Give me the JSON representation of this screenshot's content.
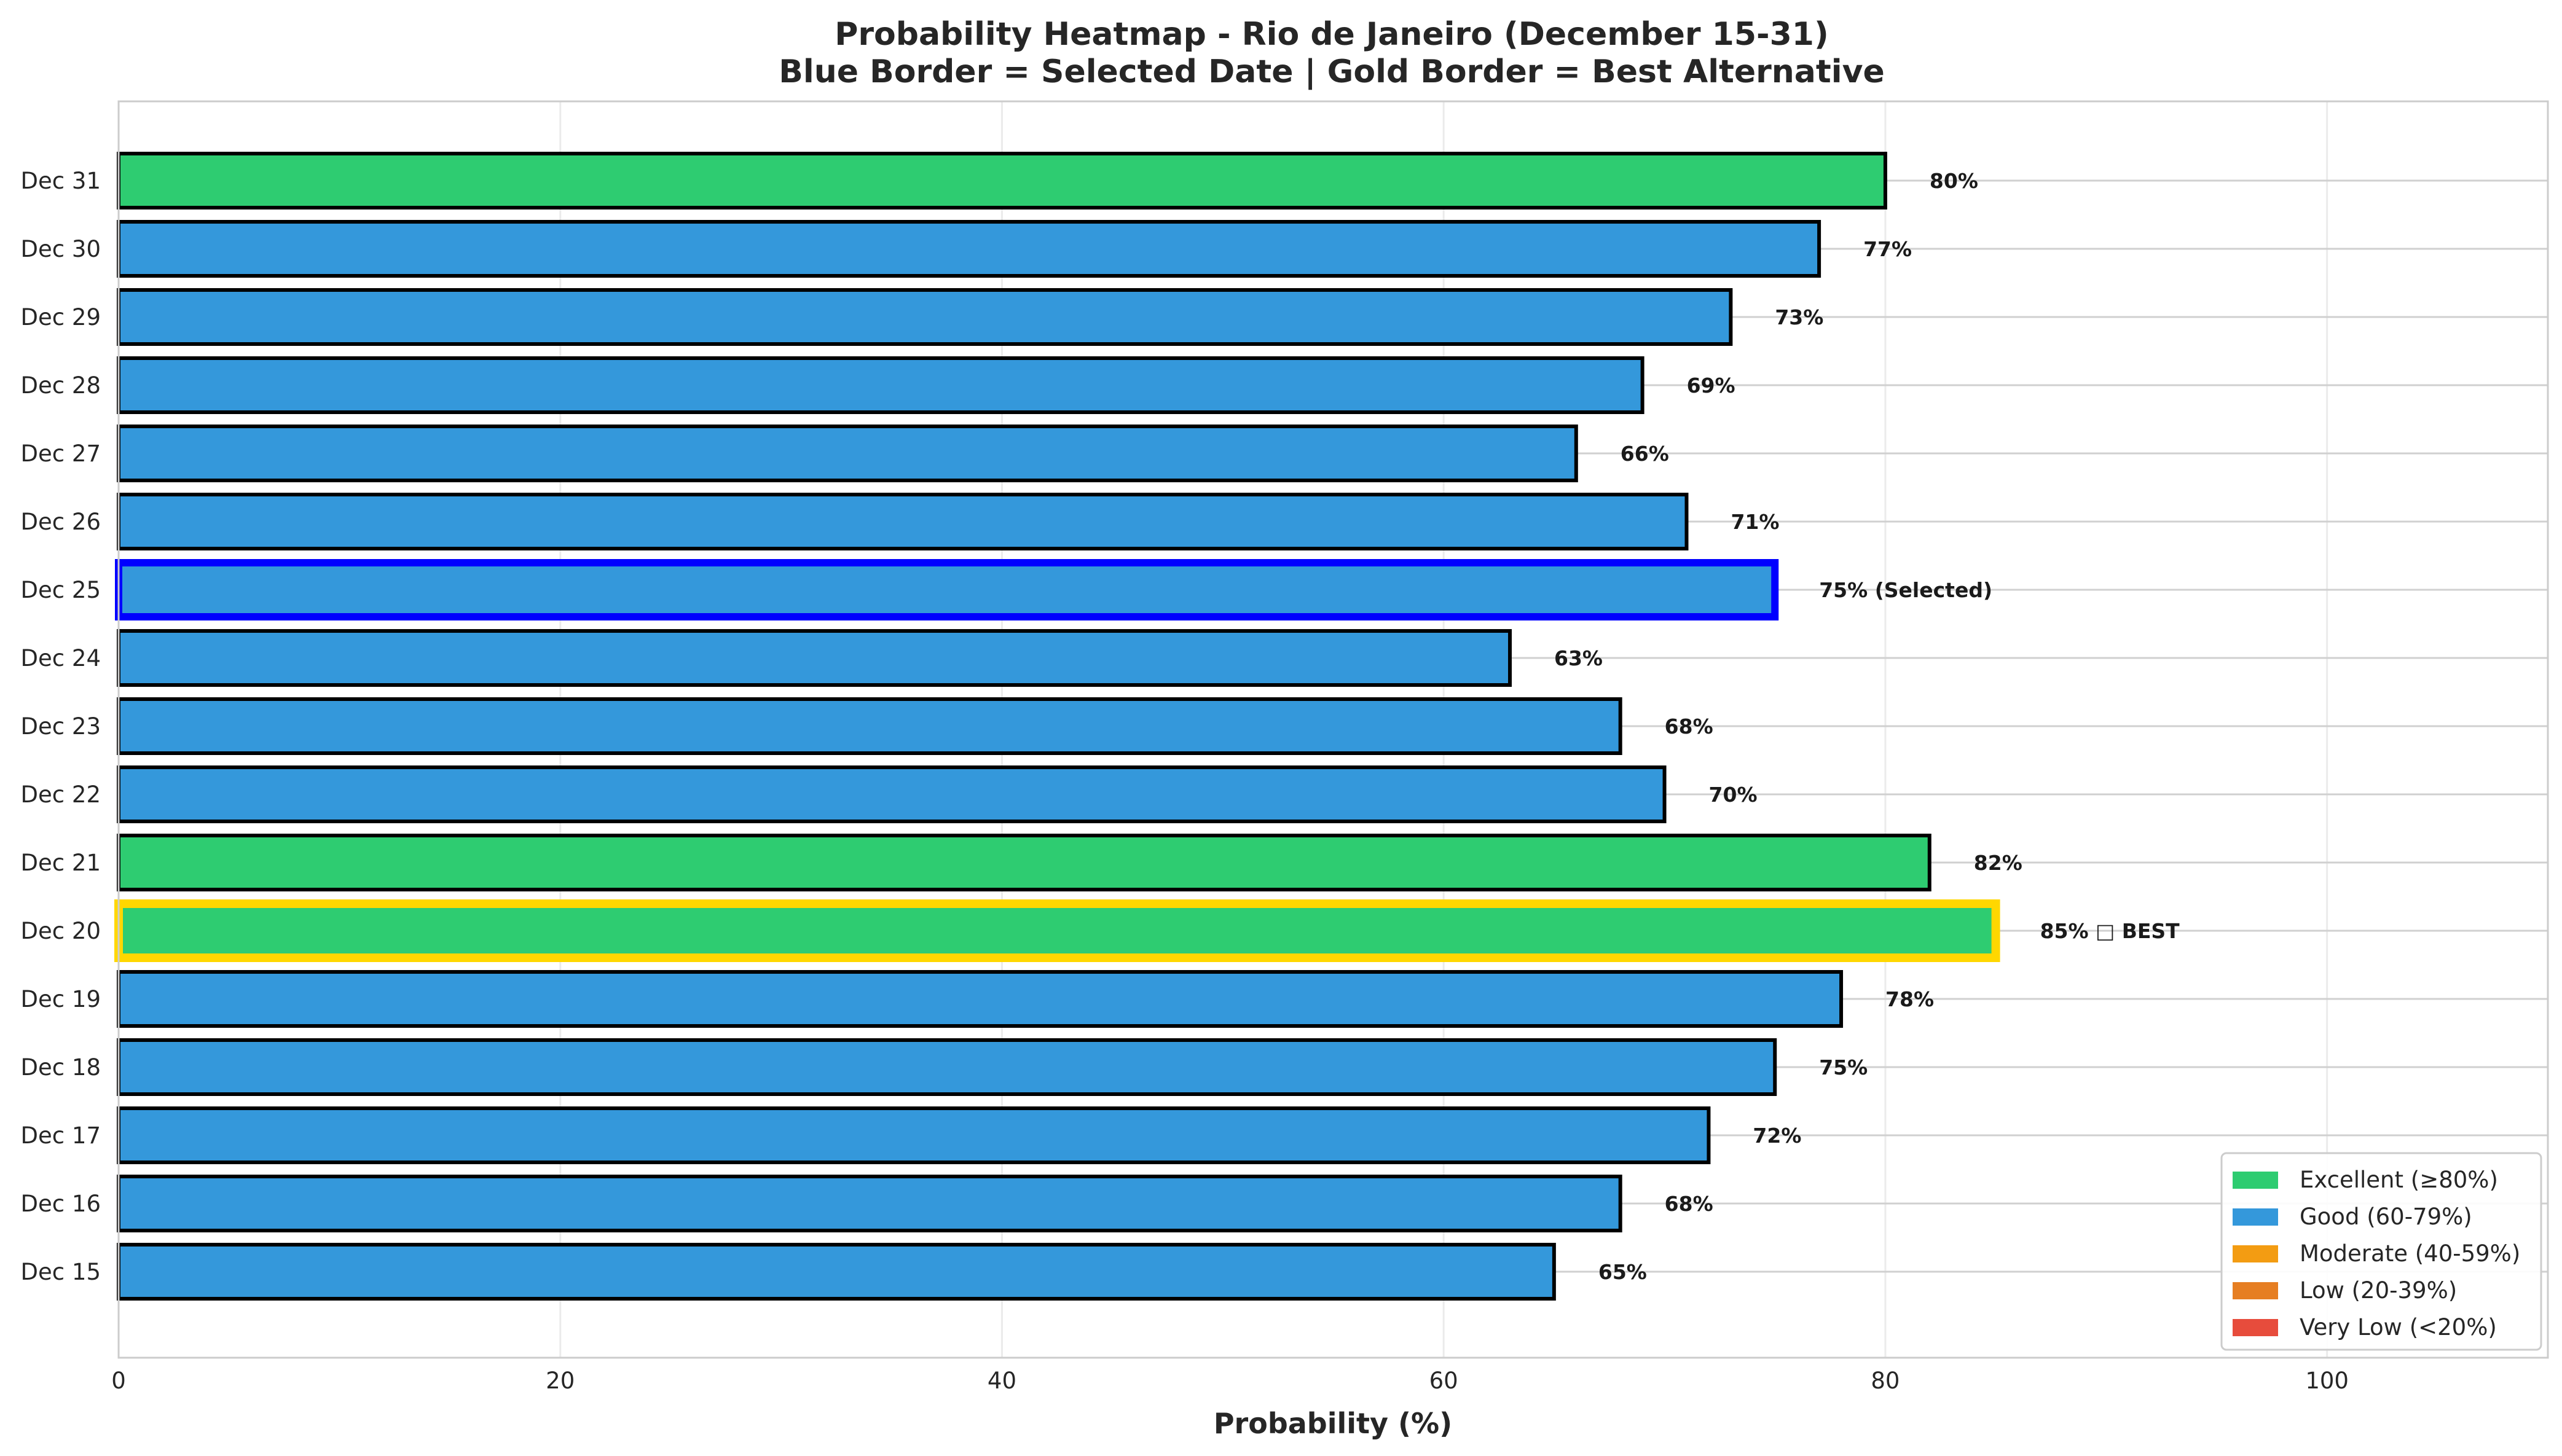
{
  "chart_data": {
    "type": "bar",
    "orientation": "horizontal",
    "title": "Probability Heatmap - Rio de Janeiro (December 15-31)",
    "subtitle": "Blue Border = Selected Date | Gold Border = Best Alternative",
    "xlabel": "Probability (%)",
    "ylabel": "",
    "xlim": [
      0,
      110
    ],
    "xticks": [
      0,
      20,
      40,
      60,
      80,
      100
    ],
    "grid": true,
    "legend_position": "bottom-right",
    "categories": [
      "Dec 15",
      "Dec 16",
      "Dec 17",
      "Dec 18",
      "Dec 19",
      "Dec 20",
      "Dec 21",
      "Dec 22",
      "Dec 23",
      "Dec 24",
      "Dec 25",
      "Dec 26",
      "Dec 27",
      "Dec 28",
      "Dec 29",
      "Dec 30",
      "Dec 31"
    ],
    "values": [
      65,
      68,
      72,
      75,
      78,
      85,
      82,
      70,
      68,
      63,
      75,
      71,
      66,
      69,
      73,
      77,
      80
    ],
    "labels": [
      "65%",
      "68%",
      "72%",
      "75%",
      "78%",
      "85% □ BEST",
      "82%",
      "70%",
      "68%",
      "63%",
      "75% (Selected)",
      "71%",
      "66%",
      "69%",
      "73%",
      "77%",
      "80%"
    ],
    "selected": "Dec 25",
    "best": "Dec 20",
    "legend": [
      {
        "label": "Excellent (≥80%)",
        "color": "#2ecc71"
      },
      {
        "label": "Good (60-79%)",
        "color": "#3498db"
      },
      {
        "label": "Moderate (40-59%)",
        "color": "#f39c12"
      },
      {
        "label": "Low (20-39%)",
        "color": "#e67e22"
      },
      {
        "label": "Very Low (<20%)",
        "color": "#e74c3c"
      }
    ],
    "colors": {
      "excellent": "#2ecc71",
      "good": "#3498db",
      "edge": "#000000",
      "selected_border": "#0000ff",
      "best_border": "#ffd700"
    }
  }
}
